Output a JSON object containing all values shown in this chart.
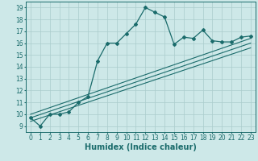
{
  "title": "",
  "xlabel": "Humidex (Indice chaleur)",
  "bg_color": "#cde8e8",
  "line_color": "#1a6b6b",
  "grid_color": "#aacccc",
  "xlim": [
    -0.5,
    23.5
  ],
  "ylim": [
    8.5,
    19.5
  ],
  "xticks": [
    0,
    1,
    2,
    3,
    4,
    5,
    6,
    7,
    8,
    9,
    10,
    11,
    12,
    13,
    14,
    15,
    16,
    17,
    18,
    19,
    20,
    21,
    22,
    23
  ],
  "yticks": [
    9,
    10,
    11,
    12,
    13,
    14,
    15,
    16,
    17,
    18,
    19
  ],
  "main_x": [
    0,
    1,
    2,
    3,
    4,
    5,
    6,
    7,
    8,
    9,
    10,
    11,
    12,
    13,
    14,
    15,
    16,
    17,
    18,
    19,
    20,
    21,
    22,
    23
  ],
  "main_y": [
    9.7,
    9.0,
    10.0,
    10.0,
    10.2,
    11.0,
    11.5,
    14.5,
    16.0,
    16.0,
    16.8,
    17.6,
    19.0,
    18.6,
    18.2,
    15.9,
    16.5,
    16.4,
    17.1,
    16.2,
    16.1,
    16.1,
    16.5,
    16.6
  ],
  "line2_x": [
    0,
    23
  ],
  "line2_y": [
    9.4,
    15.6
  ],
  "line3_x": [
    0,
    23
  ],
  "line3_y": [
    9.7,
    16.0
  ],
  "line4_x": [
    0,
    23
  ],
  "line4_y": [
    10.0,
    16.4
  ],
  "tick_fontsize": 5.5,
  "label_fontsize": 7.0
}
